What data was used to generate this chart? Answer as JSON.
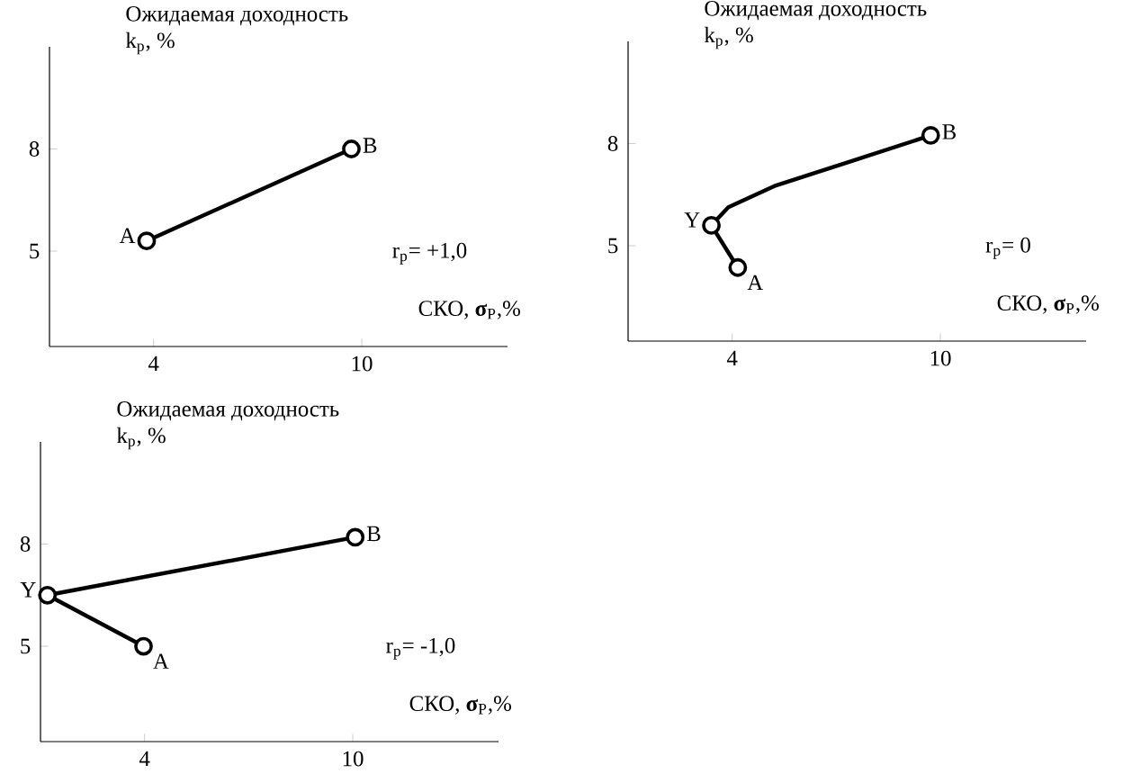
{
  "chart_data": [
    {
      "type": "line",
      "title": "Ожидаемая доходность",
      "ylabel": "k$_{p}$, %",
      "xlabel": "СКО, **σ**$_{P}$,%",
      "xlim": [
        1,
        14.2
      ],
      "ylim": [
        2.2,
        11
      ],
      "xticks": [
        4,
        10
      ],
      "yticks": [
        5,
        8
      ],
      "marker": "circle",
      "series": [
        {
          "marker": "none",
          "color": "#000000",
          "x": [
            3.8,
            9.7
          ],
          "values": [
            5.3,
            8.0
          ]
        },
        {
          "type": "scatter",
          "color": "#000000",
          "x": [
            3.8,
            9.7
          ],
          "values": [
            5.3,
            8.0
          ]
        }
      ],
      "annotations": [
        {
          "text": "A",
          "x": 3.8,
          "y": 5.3
        },
        {
          "text": "B",
          "x": 9.7,
          "y": 8.0
        },
        "r$_{p}$= +1,0"
      ]
    },
    {
      "type": "line",
      "title": "Ожидаемая доходность",
      "ylabel": "k$_{p}$, %",
      "xlabel": "СКО, **σ**$_{P}$,%",
      "xlim": [
        1,
        14.2
      ],
      "ylim": [
        2.2,
        11
      ],
      "xticks": [
        4,
        10
      ],
      "yticks": [
        5,
        8
      ],
      "marker": "circle",
      "series": [
        {
          "marker": "none",
          "color": "#000000",
          "x": [
            4.16,
            3.4,
            3.89,
            5.26,
            7.37,
            9.72
          ],
          "values": [
            4.36,
            5.6,
            6.13,
            6.77,
            7.46,
            8.24
          ]
        },
        {
          "type": "scatter",
          "color": "#000000",
          "x": [
            4.16,
            3.4,
            9.72
          ],
          "values": [
            4.36,
            5.6,
            8.24
          ]
        }
      ],
      "annotations": [
        {
          "text": "A",
          "x": 4.16,
          "y": 4.36
        },
        {
          "text": "Y",
          "x": 3.4,
          "y": 5.6
        },
        {
          "text": "B",
          "x": 9.72,
          "y": 8.24
        },
        "r$_{p}$= 0"
      ]
    },
    {
      "type": "line",
      "title": "Ожидаемая доходность",
      "ylabel": "k$_{p}$, %",
      "xlabel": "СКО, **σ**$_{P}$,%",
      "xlim": [
        1,
        14.2
      ],
      "ylim": [
        2.2,
        11
      ],
      "xticks": [
        4,
        10
      ],
      "yticks": [
        5,
        8
      ],
      "marker": "circle",
      "series": [
        {
          "marker": "none",
          "color": "#000000",
          "x": [
            3.97,
            1.2,
            10.07
          ],
          "values": [
            5.0,
            6.5,
            8.2
          ]
        },
        {
          "type": "scatter",
          "color": "#000000",
          "x": [
            3.97,
            1.2,
            10.07
          ],
          "values": [
            5.0,
            6.5,
            8.2
          ]
        }
      ],
      "annotations": [
        {
          "text": "A",
          "x": 3.97,
          "y": 5.0
        },
        {
          "text": "Y",
          "x": 1.2,
          "y": 6.5
        },
        {
          "text": "B",
          "x": 10.07,
          "y": 8.2
        },
        "r$_{p}$= -1,0"
      ]
    }
  ]
}
